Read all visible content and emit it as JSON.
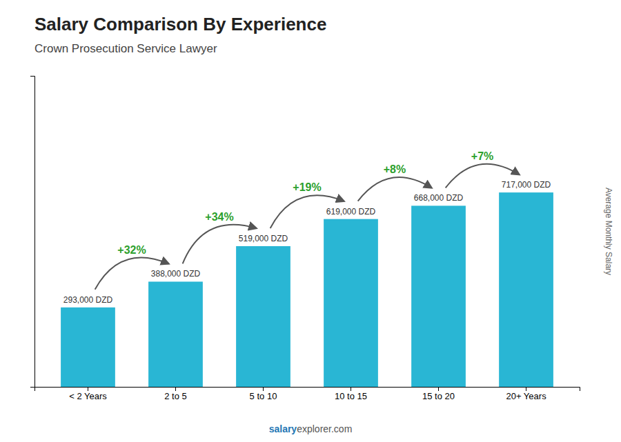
{
  "chart_data": {
    "type": "bar",
    "title": "Salary Comparison By Experience",
    "subtitle": "Crown Prosecution Service Lawyer",
    "y_label": "Average Monthly Salary",
    "footer": [
      "salary",
      "explorer.com"
    ],
    "categories": [
      "< 2 Years",
      "2 to 5",
      "5 to 10",
      "10 to 15",
      "15 to 20",
      "20+ Years"
    ],
    "values": [
      293000,
      388000,
      519000,
      619000,
      668000,
      717000
    ],
    "value_labels": [
      "293,000 DZD",
      "388,000 DZD",
      "519,000 DZD",
      "619,000 DZD",
      "668,000 DZD",
      "717,000 DZD"
    ],
    "data_labels": true,
    "annotations": [
      "+32%",
      "+34%",
      "+19%",
      "+8%",
      "+7%"
    ],
    "color": "#29b6d4",
    "ylim": [
      0,
      1147200
    ],
    "yticks": [],
    "tick_labels": "x",
    "grid": false
  }
}
